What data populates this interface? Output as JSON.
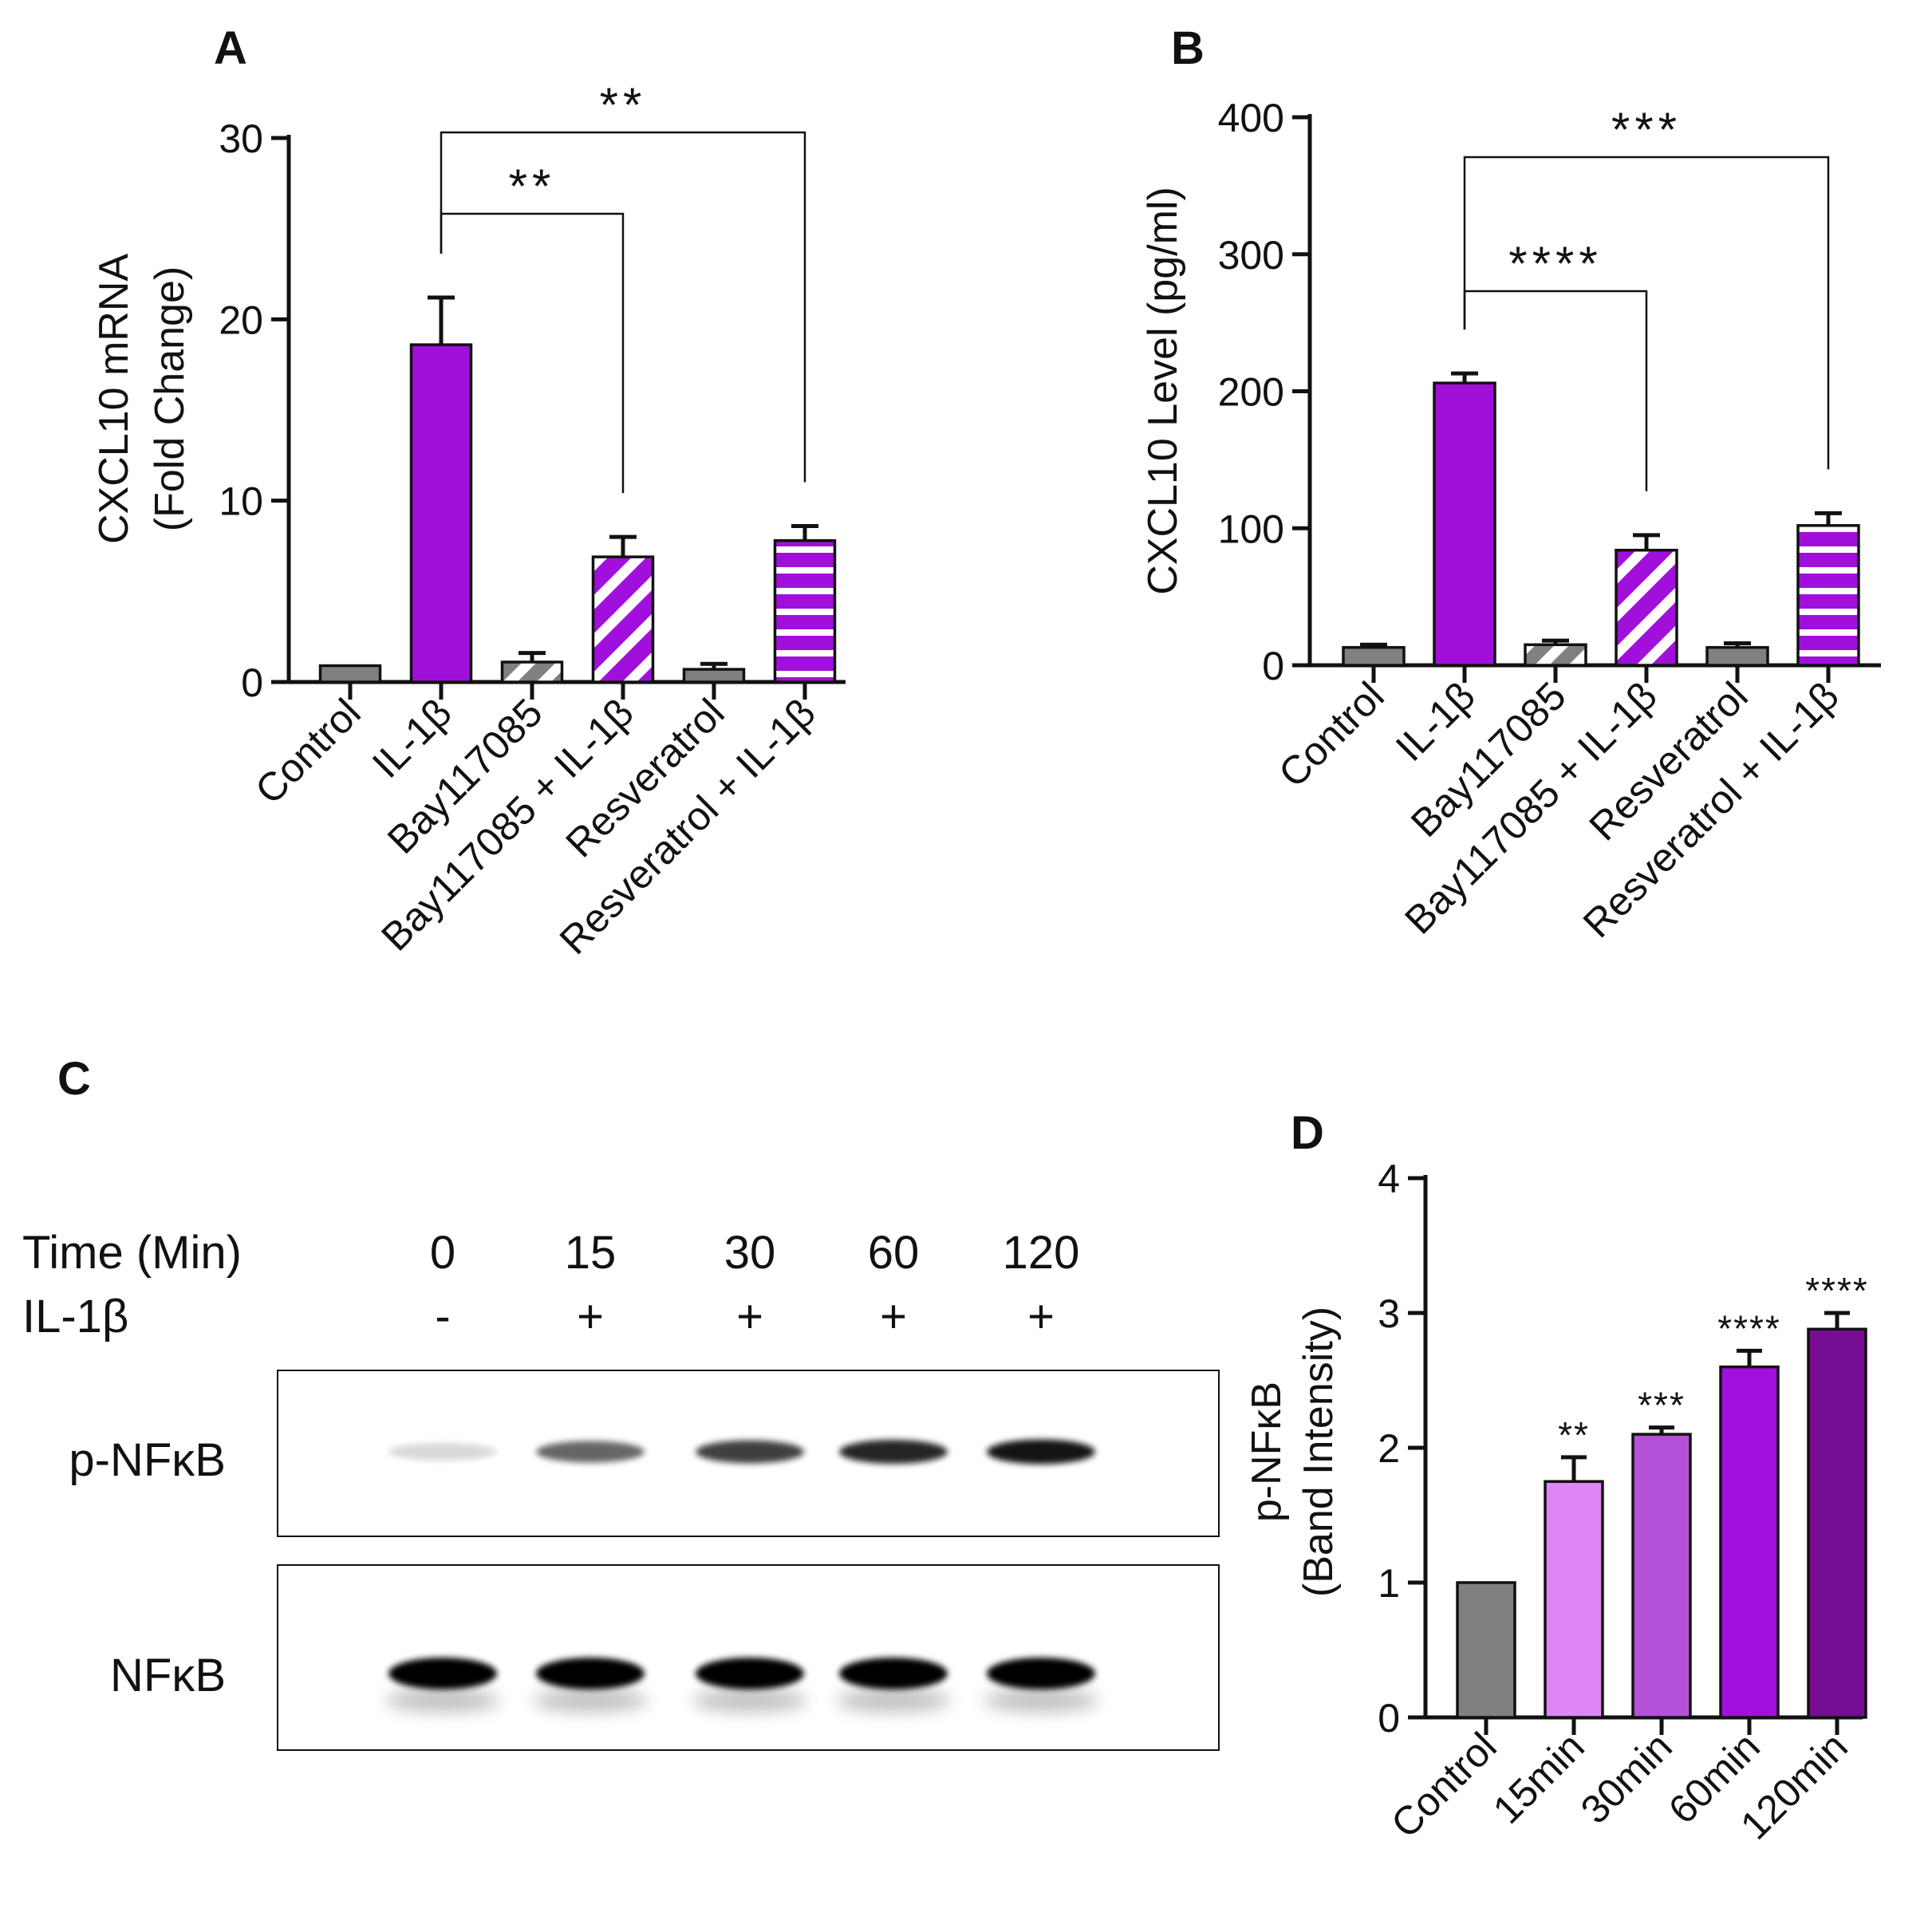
{
  "figure": {
    "panel_letters": [
      "A",
      "B",
      "C",
      "D"
    ]
  },
  "chart_data": [
    {
      "panel": "A",
      "type": "bar",
      "categories": [
        "Control",
        "IL-1β",
        "Bay117085",
        "Bay117085 + IL-1β",
        "Resveratrol",
        "Resveratrol + IL-1β"
      ],
      "values": [
        0.9,
        18.6,
        1.1,
        6.9,
        0.7,
        7.8
      ],
      "errors": [
        0,
        2.6,
        0.5,
        1.1,
        0.3,
        0.8
      ],
      "fills": [
        "solid-gray",
        "solid-purple",
        "diag-gray",
        "diag-purple",
        "solid-gray",
        "horiz-purple"
      ],
      "ylabel_line1": "CXCL10  mRNA",
      "ylabel_line2": "(Fold Change)",
      "ylim": [
        0,
        30
      ],
      "yticks": [
        0,
        10,
        20,
        30
      ],
      "significance": [
        {
          "from": 1,
          "to": 3,
          "label": "**"
        },
        {
          "from": 1,
          "to": 5,
          "label": "**"
        }
      ]
    },
    {
      "panel": "B",
      "type": "bar",
      "categories": [
        "Control",
        "IL-1β",
        "Bay117085",
        "Bay117085 + IL-1β",
        "Resveratrol",
        "Resveratrol + IL-1β"
      ],
      "values": [
        13,
        206,
        15,
        84,
        13,
        102
      ],
      "errors": [
        2,
        7,
        3,
        11,
        3,
        9
      ],
      "fills": [
        "solid-gray",
        "solid-purple",
        "diag-gray",
        "diag-purple",
        "solid-gray",
        "horiz-purple"
      ],
      "ylabel_line1": "CXCL10 Level (pg/ml)",
      "ylim": [
        0,
        400
      ],
      "yticks": [
        0,
        100,
        200,
        300,
        400
      ],
      "significance": [
        {
          "from": 1,
          "to": 3,
          "label": "****"
        },
        {
          "from": 1,
          "to": 5,
          "label": "***"
        }
      ]
    },
    {
      "panel": "D",
      "type": "bar",
      "categories": [
        "Control",
        "15min",
        "30min",
        "60min",
        "120min"
      ],
      "values": [
        1.0,
        1.75,
        2.1,
        2.6,
        2.88
      ],
      "errors": [
        0,
        0.18,
        0.05,
        0.12,
        0.12
      ],
      "colors": [
        "#7f7f7f",
        "#e085f5",
        "#b451d8",
        "#a30fdc",
        "#760e94"
      ],
      "ylabel_line1": "p-NFκB",
      "ylabel_line2": "(Band Intensity)",
      "ylim": [
        0,
        4
      ],
      "yticks": [
        0,
        1,
        2,
        3,
        4
      ],
      "bar_labels": [
        "",
        "**",
        "***",
        "****",
        "****"
      ]
    }
  ],
  "blot": {
    "header_time": "Time (Min)",
    "header_treat": "IL-1β",
    "lanes": [
      "0",
      "15",
      "30",
      "60",
      "120"
    ],
    "treatments": [
      "-",
      "+",
      "+",
      "+",
      "+"
    ],
    "rows": [
      {
        "label": "p-NFκB",
        "intensities": [
          0.15,
          0.6,
          0.75,
          0.85,
          0.92
        ]
      },
      {
        "label": "NFκB",
        "intensities": [
          1,
          1,
          1,
          1,
          1
        ]
      }
    ]
  },
  "colors": {
    "gray": "#808080",
    "purple": "#a10fdb"
  }
}
